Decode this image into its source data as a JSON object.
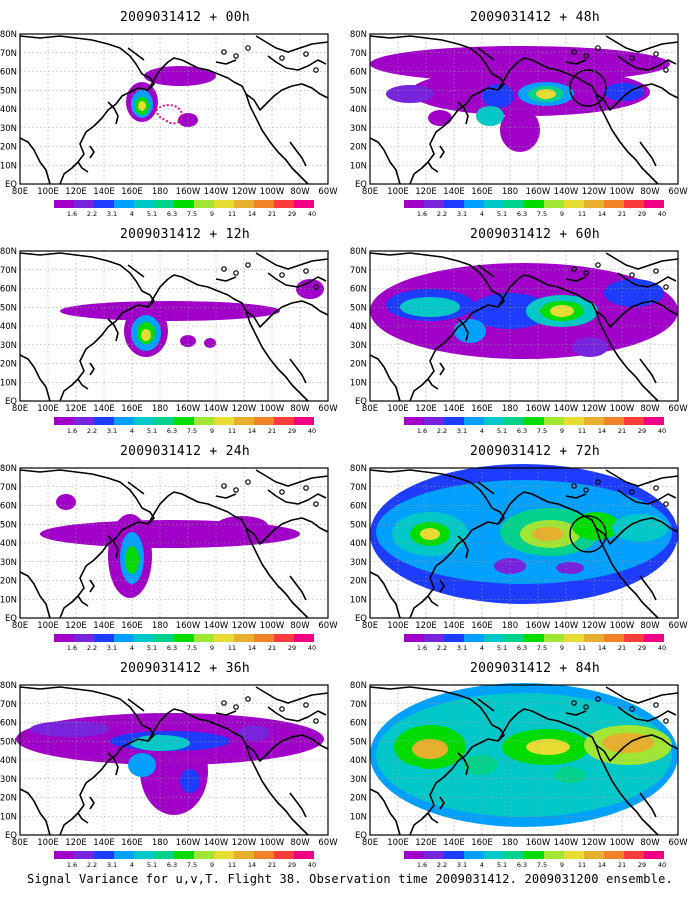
{
  "lon_labels": [
    "80E",
    "100E",
    "120E",
    "140E",
    "160E",
    "180",
    "160W",
    "140W",
    "120W",
    "100W",
    "80W",
    "60W"
  ],
  "lat_labels": [
    "80N",
    "70N",
    "60N",
    "50N",
    "40N",
    "30N",
    "20N",
    "10N",
    "EQ"
  ],
  "colorbar": {
    "labels": [
      "1.6",
      "2.2",
      "3.1",
      "4",
      "5.1",
      "6.3",
      "7.5",
      "9",
      "11",
      "14",
      "21",
      "29",
      "40"
    ],
    "colors": [
      "#a000c8",
      "#7823dc",
      "#1e3cff",
      "#00a0ff",
      "#00c8c8",
      "#00d28c",
      "#00dc00",
      "#a0e632",
      "#e6dc32",
      "#e6af2d",
      "#f08228",
      "#fa3c3c",
      "#f00082"
    ]
  },
  "caption": "Signal Variance for u,v,T. Flight 38. Observation time 2009031412. 2009031200 ensemble.",
  "panels": [
    {
      "title": "2009031412 + 00h"
    },
    {
      "title": "2009031412 + 48h"
    },
    {
      "title": "2009031412 + 12h"
    },
    {
      "title": "2009031412 + 60h"
    },
    {
      "title": "2009031412 + 24h"
    },
    {
      "title": "2009031412 + 72h"
    },
    {
      "title": "2009031412 + 36h"
    },
    {
      "title": "2009031412 + 84h"
    }
  ]
}
